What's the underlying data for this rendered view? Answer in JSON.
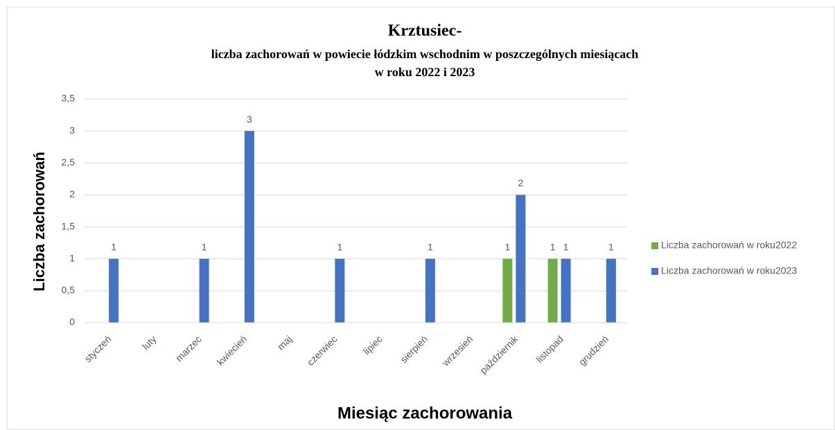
{
  "chart_data": {
    "type": "bar",
    "title": [
      "Krztusiec-",
      "liczba  zachorowań w powiecie łódzkim  wschodnim w poszczególnych miesiącach",
      "w roku 2022 i 2023"
    ],
    "categories": [
      "styczeń",
      "luty",
      "marzec",
      "kwiecień",
      "maj",
      "czerwiec",
      "lipiec",
      "sierpień",
      "wrzesień",
      "październik",
      "listopad",
      "grudzień"
    ],
    "series": [
      {
        "name": "Liczba zachorowań w roku2022",
        "color": "#70ad47",
        "values": [
          null,
          null,
          null,
          null,
          null,
          null,
          null,
          null,
          null,
          1,
          1,
          null
        ]
      },
      {
        "name": "Liczba zachorowań w roku2023",
        "color": "#4472c4",
        "values": [
          1,
          null,
          1,
          3,
          null,
          1,
          null,
          1,
          null,
          2,
          1,
          1
        ]
      }
    ],
    "ylim": [
      0,
      3.5
    ],
    "yticks": [
      0,
      {
        "value": 0.5,
        "label": "0,5"
      },
      1,
      {
        "value": 1.5,
        "label": "1,5"
      },
      2,
      {
        "value": 2.5,
        "label": "2,5"
      },
      3,
      {
        "value": 3.5,
        "label": "3,5"
      }
    ],
    "y_label": "Liczba zachorowań",
    "x_label": "Miesiąc zachorowania",
    "grid": true,
    "legend": "right"
  }
}
